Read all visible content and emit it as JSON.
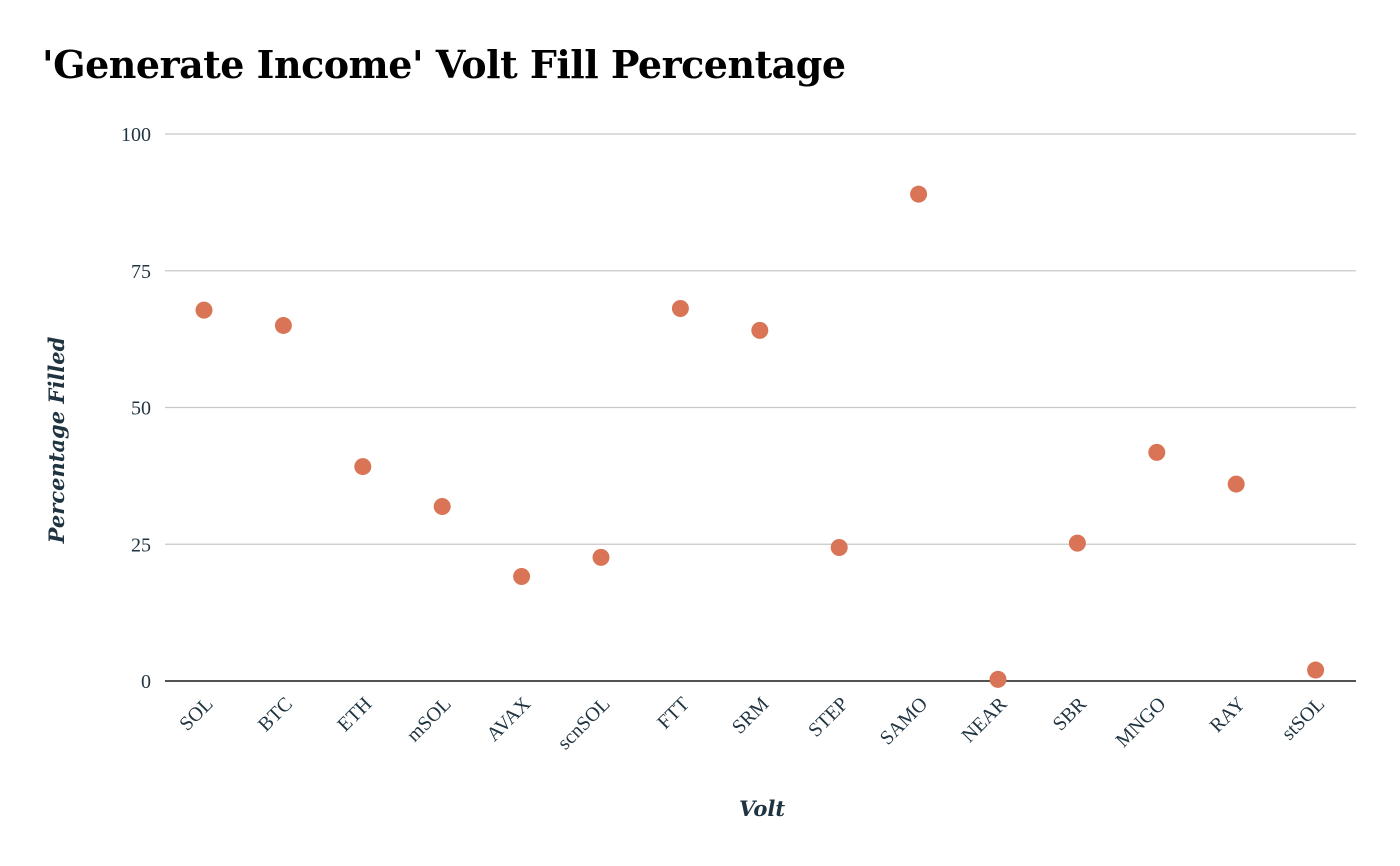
{
  "chart_data": {
    "type": "scatter",
    "title": "'Generate Income' Volt Fill Percentage",
    "xlabel": "Volt",
    "ylabel": "Percentage Filled",
    "ylim": [
      0,
      100
    ],
    "yticks": [
      "0",
      "25",
      "50",
      "75",
      "100"
    ],
    "grid": true,
    "categories": [
      "SOL",
      "BTC",
      "ETH",
      "mSOL",
      "AVAX",
      "scnSOL",
      "FTT",
      "SRM",
      "STEP",
      "SAMO",
      "NEAR",
      "SBR",
      "MNGO",
      "RAY",
      "stSOL"
    ],
    "values": [
      67.8,
      65.0,
      39.2,
      31.9,
      19.1,
      22.6,
      68.1,
      64.1,
      24.4,
      89.0,
      0.3,
      25.2,
      41.8,
      36.0,
      2.0
    ],
    "color": "#d97556"
  },
  "colors": {
    "grid": "#c8c8c8",
    "axis": "#1a1a1a",
    "text": "#1f3440"
  }
}
